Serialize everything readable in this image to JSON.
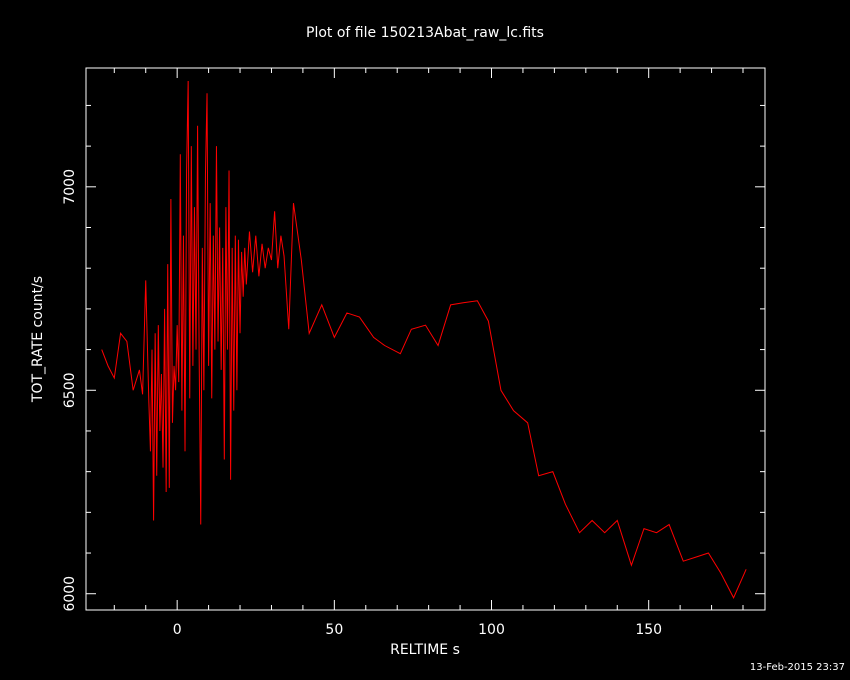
{
  "chart_data": {
    "type": "line",
    "title": "Plot of file 150213Abat_raw_lc.fits",
    "x_label": "RELTIME  s",
    "y_label": "TOT_RATE  count/s",
    "footer": "13-Feb-2015 23:37",
    "color": "#ff0000",
    "x": [
      -24,
      -22,
      -20,
      -18,
      -16,
      -14,
      -12,
      -11,
      -10,
      -9,
      -8.5,
      -8,
      -7.5,
      -7,
      -6.5,
      -6,
      -5.5,
      -5,
      -4.5,
      -4,
      -3.5,
      -3,
      -2.5,
      -2,
      -1.5,
      -1,
      -0.5,
      0,
      0.5,
      1,
      1.5,
      2,
      2.5,
      3,
      3.5,
      4,
      4.5,
      5,
      5.5,
      6,
      6.5,
      7,
      7.5,
      8,
      8.5,
      9,
      9.5,
      10,
      10.5,
      11,
      11.5,
      12,
      12.5,
      13,
      13.5,
      14,
      14.5,
      15,
      15.5,
      16,
      16.5,
      17,
      17.5,
      18,
      18.5,
      19,
      19.5,
      20,
      20.5,
      21,
      21.5,
      22,
      23,
      24,
      25,
      26,
      27,
      28,
      29,
      30,
      31,
      32,
      33,
      34,
      35.5,
      37,
      39.5,
      42,
      46,
      50,
      54,
      58,
      62.5,
      66,
      71,
      74.5,
      79,
      83,
      87,
      91,
      95.5,
      99,
      103,
      107,
      111.5,
      115,
      119.5,
      123.5,
      128,
      132,
      136,
      140,
      144.5,
      148.5,
      152.5,
      156.5,
      161,
      165,
      169,
      173,
      177,
      181
    ],
    "values": [
      6600,
      6560,
      6530,
      6640,
      6620,
      6500,
      6550,
      6490,
      6770,
      6470,
      6350,
      6600,
      6180,
      6640,
      6290,
      6660,
      6400,
      6540,
      6310,
      6700,
      6250,
      6810,
      6260,
      6970,
      6420,
      6560,
      6500,
      6660,
      6520,
      7080,
      6450,
      6880,
      6350,
      7040,
      7260,
      6480,
      7100,
      6560,
      6950,
      6600,
      7150,
      6580,
      6170,
      6850,
      6500,
      7030,
      7230,
      6560,
      6960,
      6480,
      6880,
      6600,
      7100,
      6620,
      6900,
      6550,
      6850,
      6330,
      6950,
      6600,
      7040,
      6280,
      6850,
      6450,
      6880,
      6500,
      6870,
      6640,
      6840,
      6730,
      6850,
      6760,
      6890,
      6790,
      6880,
      6780,
      6860,
      6800,
      6850,
      6820,
      6940,
      6800,
      6880,
      6830,
      6650,
      6960,
      6820,
      6640,
      6710,
      6630,
      6690,
      6680,
      6630,
      6610,
      6590,
      6650,
      6660,
      6610,
      6710,
      6715,
      6720,
      6670,
      6500,
      6450,
      6420,
      6290,
      6300,
      6220,
      6150,
      6180,
      6150,
      6180,
      6070,
      6160,
      6150,
      6170,
      6080,
      6090,
      6100,
      6050,
      5990,
      6060
    ],
    "xlim": [
      -29,
      187
    ],
    "ylim": [
      5960,
      7292
    ],
    "xticks": [
      0,
      50,
      100,
      150
    ],
    "yticks": [
      6000,
      6500,
      7000
    ],
    "xminorticks": [
      -20,
      -10,
      10,
      20,
      30,
      40,
      60,
      70,
      80,
      90,
      110,
      120,
      130,
      140,
      160,
      170,
      180
    ],
    "yminorticks": [
      6100,
      6200,
      6300,
      6400,
      6600,
      6700,
      6800,
      6900,
      7100,
      7200
    ]
  }
}
